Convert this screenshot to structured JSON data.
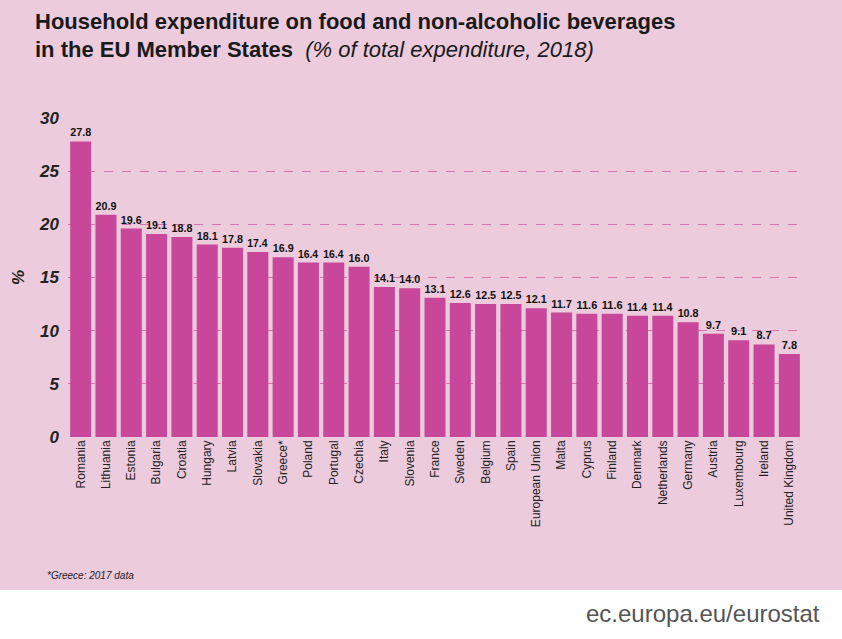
{
  "chart_data": {
    "type": "bar",
    "title": "Household expenditure on food and non-alcoholic beverages\nin the EU Member States",
    "subtitle": "(% of total expenditure, 2018)",
    "y_label": "%",
    "categories": [
      "Romania",
      "Lithuania",
      "Estonia",
      "Bulgaria",
      "Croatia",
      "Hungary",
      "Latvia",
      "Slovakia",
      "Greece*",
      "Poland",
      "Portugal",
      "Czechia",
      "Italy",
      "Slovenia",
      "France",
      "Sweden",
      "Belgium",
      "Spain",
      "European Union",
      "Malta",
      "Cyprus",
      "Finland",
      "Denmark",
      "Netherlands",
      "Germany",
      "Austria",
      "Luxembourg",
      "Ireland",
      "United Kingdom"
    ],
    "values": [
      27.8,
      20.9,
      19.6,
      19.1,
      18.8,
      18.1,
      17.8,
      17.4,
      16.9,
      16.4,
      16.4,
      16.0,
      14.1,
      14.0,
      13.1,
      12.6,
      12.5,
      12.5,
      12.1,
      11.7,
      11.6,
      11.6,
      11.4,
      11.4,
      10.8,
      9.7,
      9.1,
      8.7,
      7.8
    ],
    "value_labels": [
      "27.8",
      "20.9",
      "19.6",
      "19.1",
      "18.8",
      "18.1",
      "17.8",
      "17.4",
      "16.9",
      "16.4",
      "16.4",
      "16.0",
      "14.1",
      "14.0",
      "13.1",
      "12.6",
      "12.5",
      "12.5",
      "12.1",
      "11.7",
      "11.6",
      "11.6",
      "11.4",
      "11.4",
      "10.8",
      "9.7",
      "9.1",
      "8.7",
      "7.8"
    ],
    "color": "#c8479a",
    "ylim": [
      0,
      30
    ],
    "yticks": [
      0,
      5,
      10,
      15,
      20,
      25,
      30
    ],
    "grid": true,
    "data_labels": true,
    "annotations": [
      "*Greece: 2017 data",
      "ec.europa.eu/eurostat"
    ]
  }
}
